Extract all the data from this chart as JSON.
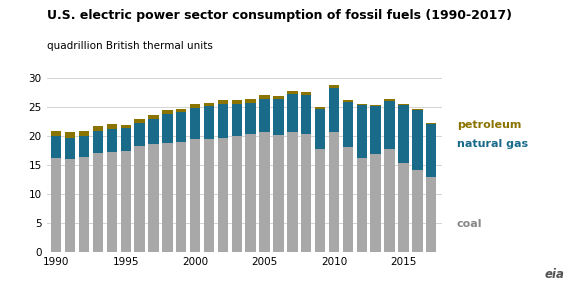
{
  "title": "U.S. electric power sector consumption of fossil fuels (1990-2017)",
  "ylabel": "quadrillion British thermal units",
  "years": [
    1990,
    1991,
    1992,
    1993,
    1994,
    1995,
    1996,
    1997,
    1998,
    1999,
    2000,
    2001,
    2002,
    2003,
    2004,
    2005,
    2006,
    2007,
    2008,
    2009,
    2010,
    2011,
    2012,
    2013,
    2014,
    2015,
    2016,
    2017
  ],
  "coal": [
    16.26,
    16.17,
    16.37,
    17.08,
    17.28,
    17.42,
    18.4,
    18.68,
    18.86,
    19.0,
    19.59,
    19.55,
    19.68,
    20.07,
    20.34,
    20.73,
    20.24,
    20.82,
    20.46,
    17.82,
    20.82,
    18.23,
    16.19,
    17.01,
    17.83,
    15.41,
    14.18,
    12.93
  ],
  "natural_gas": [
    3.79,
    3.61,
    3.64,
    3.8,
    3.97,
    3.95,
    3.93,
    4.34,
    5.05,
    5.21,
    5.29,
    5.59,
    5.9,
    5.55,
    5.47,
    5.75,
    6.17,
    6.46,
    6.62,
    6.9,
    7.57,
    7.72,
    9.14,
    8.15,
    8.23,
    9.92,
    10.36,
    9.13
  ],
  "petroleum": [
    0.84,
    0.88,
    0.85,
    0.83,
    0.87,
    0.52,
    0.59,
    0.57,
    0.6,
    0.58,
    0.77,
    0.68,
    0.64,
    0.66,
    0.68,
    0.64,
    0.55,
    0.57,
    0.54,
    0.37,
    0.44,
    0.36,
    0.3,
    0.31,
    0.29,
    0.22,
    0.2,
    0.19
  ],
  "coal_color": "#a8a8a8",
  "gas_color": "#1a6b8a",
  "petro_color": "#8b7300",
  "bar_width": 0.75,
  "ylim": [
    0,
    30
  ],
  "yticks": [
    0,
    5,
    10,
    15,
    20,
    25,
    30
  ],
  "label_coal": "coal",
  "label_gas": "natural gas",
  "label_petro": "petroleum",
  "title_fontsize": 9,
  "axis_fontsize": 7.5,
  "label_fontsize": 8
}
